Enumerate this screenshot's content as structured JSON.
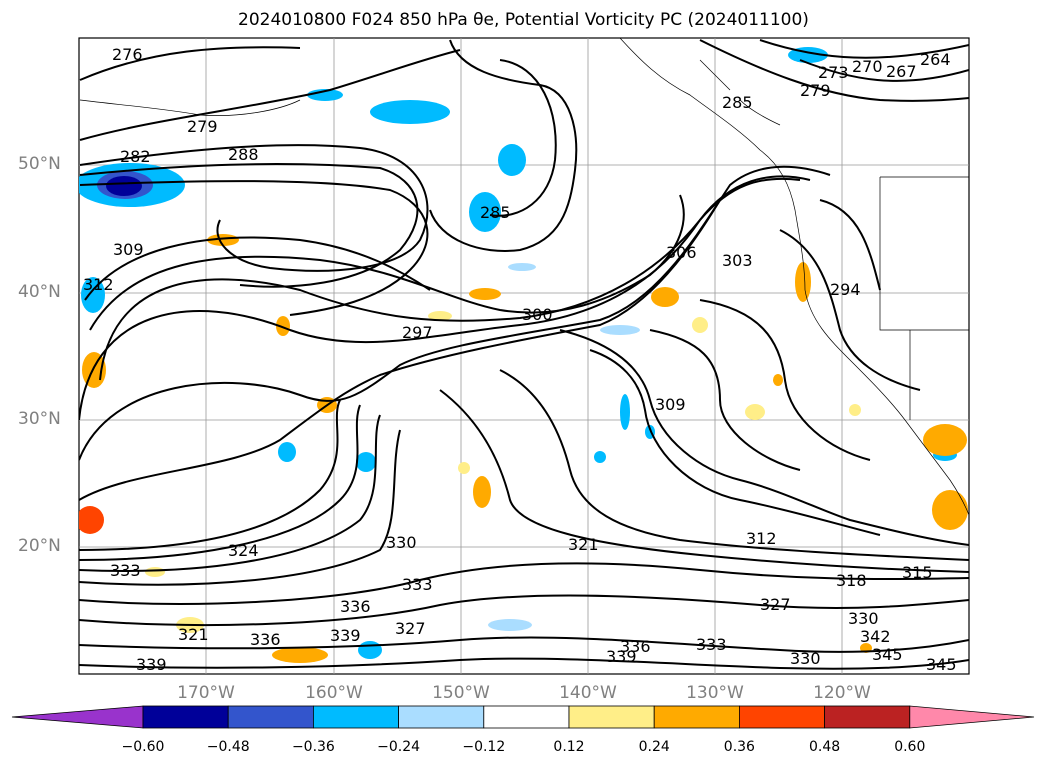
{
  "title": "2024010800 F024 850 hPa θe, Potential Vorticity PC (2024011100)",
  "lat_labels": [
    "50°N",
    "40°N",
    "30°N",
    "20°N"
  ],
  "lon_labels": [
    "170°W",
    "160°W",
    "150°W",
    "140°W",
    "130°W",
    "120°W"
  ],
  "contour_labels": [
    "276",
    "279",
    "282",
    "288",
    "285",
    "273",
    "270",
    "267",
    "264",
    "279",
    "285",
    "309",
    "312",
    "297",
    "300",
    "306",
    "303",
    "294",
    "309",
    "312",
    "321",
    "318",
    "315",
    "327",
    "324",
    "333",
    "336",
    "339",
    "330",
    "342",
    "345",
    "333",
    "336",
    "339",
    "336",
    "339",
    "333",
    "330",
    "321",
    "327",
    "330",
    "345"
  ],
  "colorbar": {
    "ticks": [
      "−0.60",
      "−0.48",
      "−0.36",
      "−0.24",
      "−0.12",
      "0.12",
      "0.24",
      "0.36",
      "0.48",
      "0.60"
    ],
    "colors": [
      "#9933cc",
      "#000099",
      "#3355cc",
      "#00bbff",
      "#aaddff",
      "#ffffff",
      "#ffee88",
      "#ffaa00",
      "#ff4400",
      "#bb2222",
      "#ff88aa"
    ]
  }
}
